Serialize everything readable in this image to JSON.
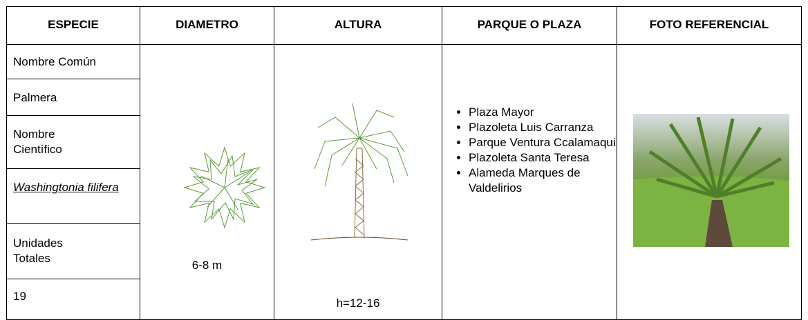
{
  "table": {
    "header": [
      "ESPECIE",
      "DIAMETRO",
      "ALTURA",
      "PARQUE O PLAZA",
      "FOTO REFERENCIAL"
    ],
    "especie": [
      "Nombre Común",
      "Palmera",
      "Nombre Científico",
      "Washingtonia filifera",
      "Unidades Totales",
      "19"
    ],
    "diametro": "6-8 m",
    "altura": "h=12-16",
    "parques": [
      "Plaza Mayor",
      "Plazoleta Luis Carranza",
      "Parque Ventura Ccalamaqui",
      "Plazoleta Santa Teresa",
      "Alameda Marques de Valdelirios"
    ]
  }
}
